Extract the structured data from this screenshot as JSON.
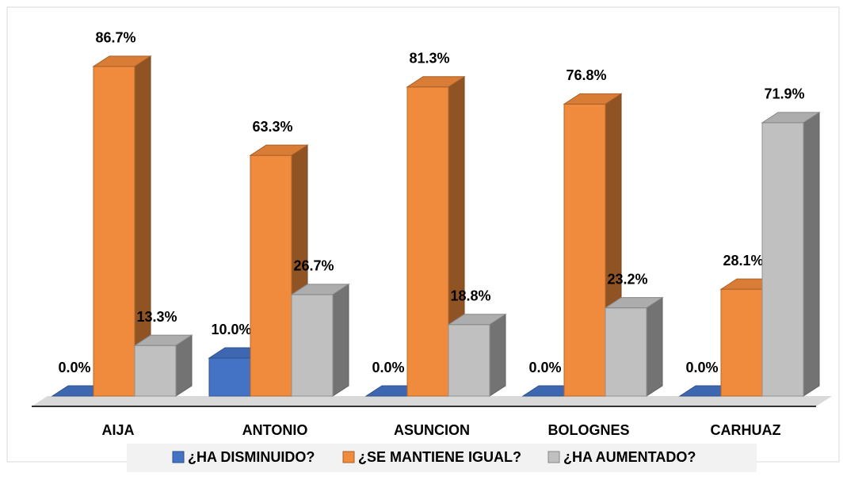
{
  "chart_data": {
    "type": "bar3d",
    "categories": [
      "AIJA",
      "ANTONIO",
      "ASUNCION",
      "BOLOGNES",
      "CARHUAZ"
    ],
    "series": [
      {
        "name": "¿HA DISMINUIDO?",
        "color": "#4472c4",
        "values": [
          0,
          10,
          0,
          0,
          0
        ],
        "value_labels": [
          "0.0%",
          "10.0%",
          "0.0%",
          "0.0%",
          "0.0%"
        ]
      },
      {
        "name": "¿SE MANTIENE IGUAL?",
        "color": "#f08a3c",
        "values": [
          86.7,
          63.3,
          81.3,
          76.8,
          28.1
        ],
        "value_labels": [
          "86.7%",
          "63.3%",
          "81.3%",
          "76.8%",
          "28.1%"
        ]
      },
      {
        "name": "¿HA AUMENTADO?",
        "color": "#c0c0c0",
        "values": [
          13.3,
          26.7,
          18.8,
          23.2,
          71.9
        ],
        "value_labels": [
          "13.3%",
          "26.7%",
          "18.8%",
          "23.2%",
          "71.9%"
        ]
      }
    ],
    "ylim": [
      0,
      100
    ],
    "legend": "bottom"
  }
}
